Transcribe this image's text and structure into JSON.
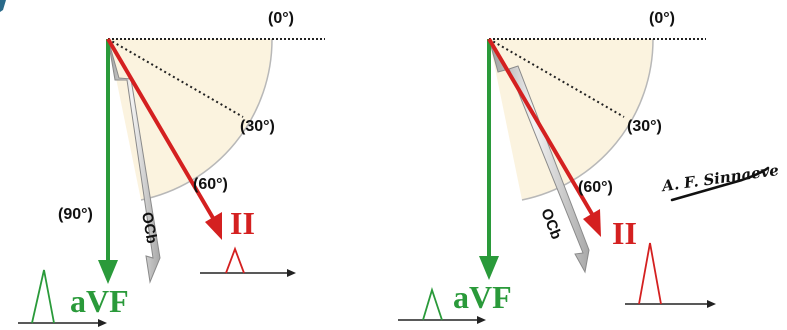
{
  "panels": [
    {
      "angle_0": "(0°)",
      "angle_30": "(30°)",
      "angle_60": "(60°)",
      "angle_90": "(90°)",
      "lead_avf": "aVF",
      "lead_ii": "II",
      "ocb_label": "OCb"
    },
    {
      "angle_0": "(0°)",
      "angle_30": "(30°)",
      "angle_60": "(60°)",
      "lead_avf": "aVF",
      "lead_ii": "II",
      "ocb_label": "OCb"
    }
  ],
  "signature": "A. F. Sinnaeve",
  "colors": {
    "lead_avf": "#2a9a3a",
    "lead_ii": "#d42020",
    "ocb_vector": "#cfcfcf",
    "sector_fill": "#fbf3df"
  }
}
